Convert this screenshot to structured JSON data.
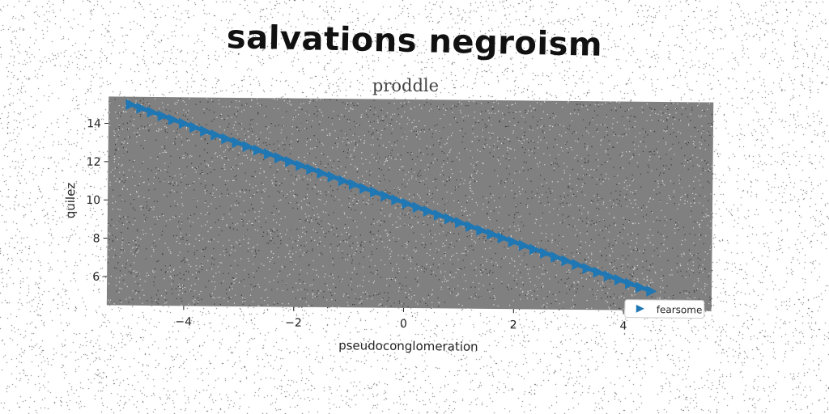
{
  "header": {
    "title": "salvations negroism",
    "subtitle": "proddle"
  },
  "colors": {
    "plot_background": "#808080",
    "series": "#1f77b4",
    "noise": "#555555"
  },
  "chart_data": {
    "type": "line",
    "title": "proddle",
    "xlabel": "pseudoconglomeration",
    "ylabel": "quilez",
    "xlim": [
      -5.4,
      5.6
    ],
    "ylim": [
      4.5,
      15.4
    ],
    "xticks": [
      -4,
      -2,
      0,
      2,
      4
    ],
    "xtick_labels": [
      "−4",
      "−2",
      "0",
      "2",
      "4"
    ],
    "yticks": [
      6,
      8,
      10,
      12,
      14
    ],
    "ytick_labels": [
      "6",
      "8",
      "10",
      "12",
      "14"
    ],
    "grid": false,
    "legend_position": "lower right",
    "series": [
      {
        "name": "fearsome",
        "marker": "triangle-right",
        "x_start": -5.0,
        "x_end": 4.5,
        "num_points": 50,
        "slope": -1.0,
        "intercept": 10.0
      }
    ]
  }
}
